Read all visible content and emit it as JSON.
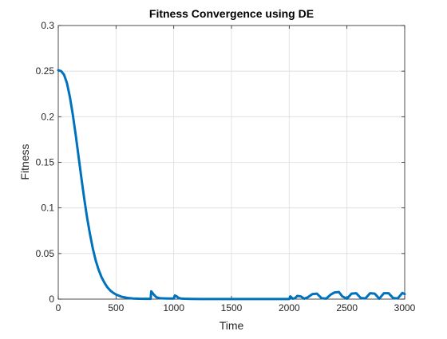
{
  "chart_data": {
    "type": "line",
    "title": "Fitness Convergence using DE",
    "xlabel": "Time",
    "ylabel": "Fitness",
    "xlim": [
      0,
      3000
    ],
    "ylim": [
      0,
      0.3
    ],
    "xticks": [
      0,
      500,
      1000,
      1500,
      2000,
      2500,
      3000
    ],
    "yticks": [
      0,
      0.05,
      0.1,
      0.15,
      0.2,
      0.25,
      0.3
    ],
    "xtick_labels": [
      "0",
      "500",
      "1000",
      "1500",
      "2000",
      "2500",
      "3000"
    ],
    "ytick_labels": [
      "0",
      "0.05",
      "0.1",
      "0.15",
      "0.2",
      "0.25",
      "0.3"
    ],
    "grid": true,
    "legend": "none",
    "series": [
      {
        "color": "#0072BD",
        "x": [
          0,
          25,
          50,
          75,
          100,
          125,
          150,
          175,
          200,
          225,
          250,
          275,
          300,
          325,
          350,
          375,
          400,
          425,
          450,
          475,
          500,
          550,
          600,
          650,
          700,
          750,
          800,
          805,
          815,
          830,
          850,
          880,
          920,
          960,
          1000,
          1010,
          1025,
          1040,
          1060,
          1090,
          1150,
          1250,
          1400,
          1600,
          1800,
          2000,
          2010,
          2030,
          2050,
          2070,
          2100,
          2130,
          2160,
          2200,
          2240,
          2280,
          2320,
          2360,
          2390,
          2430,
          2460,
          2500,
          2540,
          2580,
          2620,
          2660,
          2700,
          2740,
          2780,
          2820,
          2860,
          2900,
          2940,
          2980,
          3000
        ],
        "y": [
          0.251,
          0.25,
          0.246,
          0.237,
          0.222,
          0.203,
          0.181,
          0.157,
          0.133,
          0.11,
          0.089,
          0.071,
          0.055,
          0.042,
          0.032,
          0.024,
          0.018,
          0.013,
          0.0095,
          0.007,
          0.005,
          0.0025,
          0.0013,
          0.0007,
          0.0004,
          0.0003,
          0.0003,
          0.0085,
          0.007,
          0.0045,
          0.002,
          0.001,
          0.0008,
          0.0007,
          0.0006,
          0.004,
          0.003,
          0.0015,
          0.0007,
          0.0004,
          0.0002,
          0.0001,
          0.0001,
          0.0001,
          0.0001,
          0.0001,
          0.003,
          0.0005,
          0.001,
          0.0035,
          0.003,
          0.0005,
          0.002,
          0.0055,
          0.006,
          0.001,
          0.0005,
          0.005,
          0.0072,
          0.0078,
          0.003,
          0.0005,
          0.006,
          0.0065,
          0.0012,
          0.0008,
          0.0065,
          0.006,
          0.0005,
          0.0065,
          0.0065,
          0.0012,
          0.0008,
          0.0068,
          0.0055
        ]
      }
    ]
  }
}
